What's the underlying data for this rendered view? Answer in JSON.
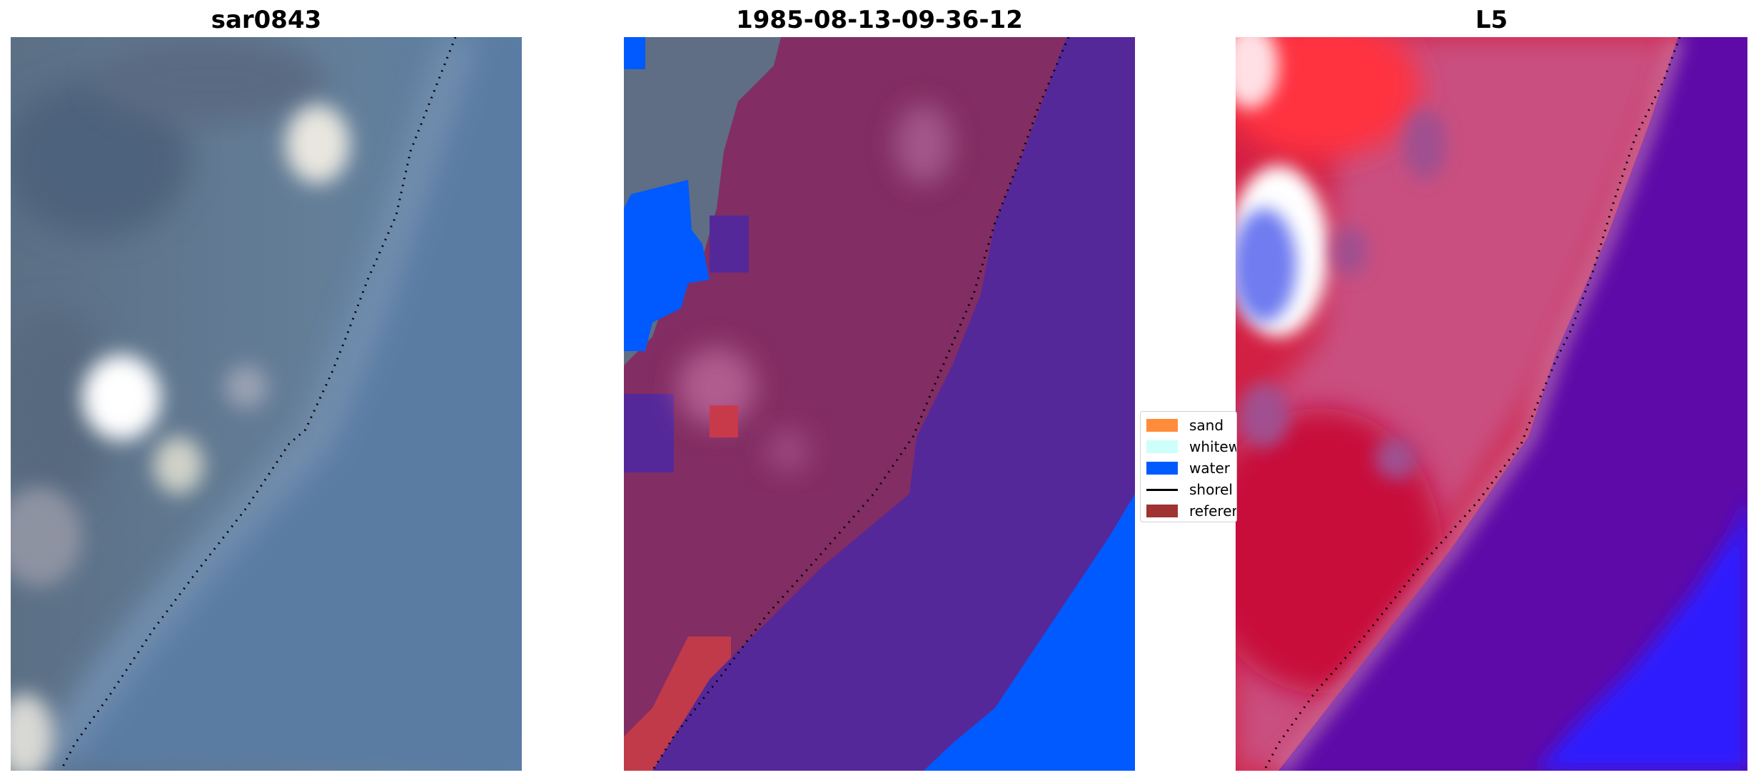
{
  "panels": [
    {
      "title": "sar0843"
    },
    {
      "title": "1985-08-13-09-36-12"
    },
    {
      "title": "L5"
    }
  ],
  "legend": {
    "items": [
      {
        "label": "sand",
        "type": "patch",
        "color": "#ff8c3a"
      },
      {
        "label": "whitew",
        "type": "patch",
        "color": "#cdfffb"
      },
      {
        "label": "water",
        "type": "patch",
        "color": "#005aff"
      },
      {
        "label": "shorel",
        "type": "line",
        "color": "#000000"
      },
      {
        "label": "referer",
        "type": "patch",
        "color": "#a03232"
      }
    ]
  },
  "colors": {
    "rgb_water": "#5a7ca0",
    "rgb_land": "#6b7f94",
    "class_sand_overlay": "#8b2b5f",
    "class_water_overlay": "#55289a",
    "class_water": "#005aff",
    "index_land": "#d62040",
    "index_water": "#5a10a8"
  }
}
